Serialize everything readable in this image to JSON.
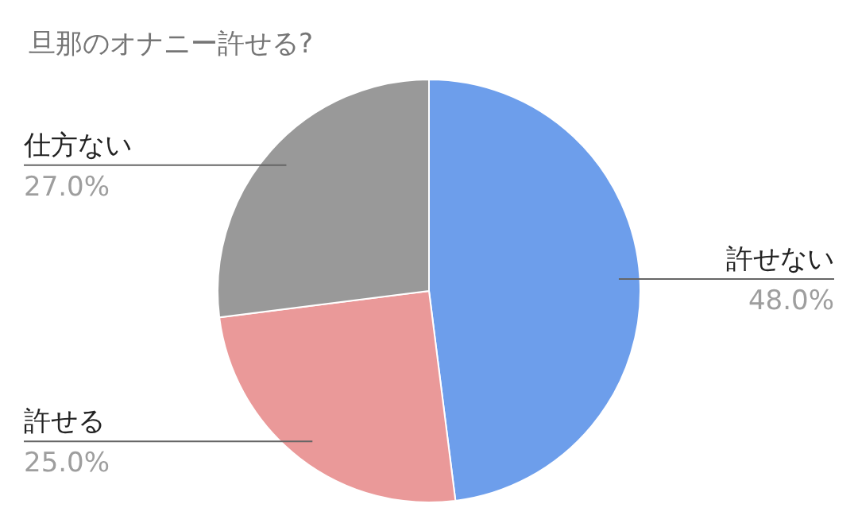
{
  "chart_data": {
    "type": "pie",
    "title": "旦那のオナニー許せる?",
    "categories": [
      "許せない",
      "許せる",
      "仕方ない"
    ],
    "values": [
      48,
      25,
      27
    ],
    "colors": [
      "#6d9eeb",
      "#ea9999",
      "#999999"
    ],
    "value_labels": [
      "48.0%",
      "25.0%",
      "27.0%"
    ]
  }
}
